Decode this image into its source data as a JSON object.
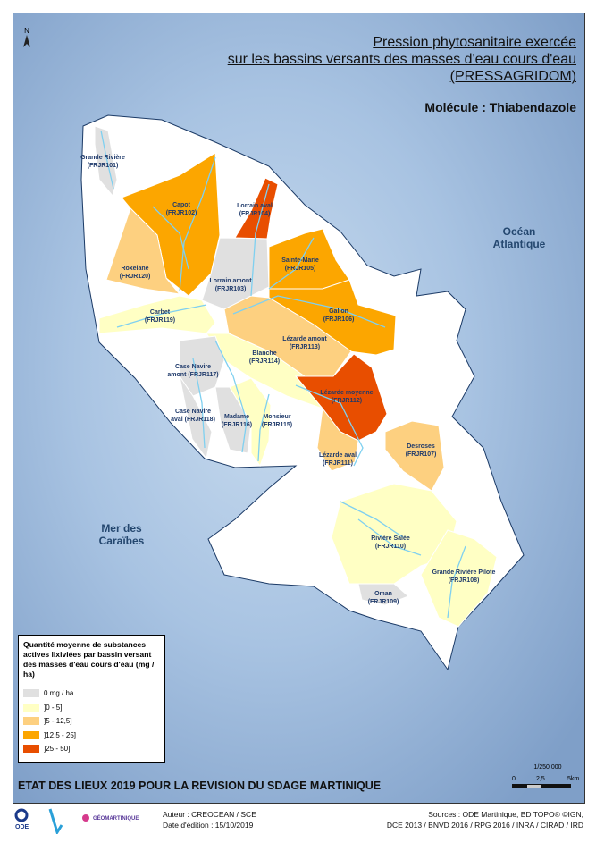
{
  "title": {
    "line1": "Pression phytosanitaire exercée",
    "line2": "sur les bassins versants des masses d'eau cours d'eau",
    "line3": "(PRESSAGRIDOM)"
  },
  "molecule": "Molécule : Thiabendazole",
  "north_label": "N",
  "seas": {
    "atlantic": [
      "Océan",
      "Atlantique"
    ],
    "caribbean": [
      "Mer des",
      "Caraïbes"
    ]
  },
  "basins": [
    {
      "name": "Grande Rivière",
      "code": "(FRJR101)",
      "class": "0 mg / ha"
    },
    {
      "name": "Capot",
      "code": "(FRJR102)",
      "class": "]12,5 - 25]"
    },
    {
      "name": "Lorrain amont",
      "code": "(FRJR103)",
      "class": "0 mg / ha"
    },
    {
      "name": "Lorrain aval",
      "code": "(FRJR104)",
      "class": "]25 - 50]"
    },
    {
      "name": "Sainte-Marie",
      "code": "(FRJR105)",
      "class": "]12,5 - 25]"
    },
    {
      "name": "Galion",
      "code": "(FRJR106)",
      "class": "]12,5 - 25]"
    },
    {
      "name": "Desroses",
      "code": "(FRJR107)",
      "class": "]5 - 12,5]"
    },
    {
      "name": "Grande Rivière Pilote",
      "code": "(FRJR108)",
      "class": "]0 - 5]"
    },
    {
      "name": "Oman",
      "code": "(FRJR109)",
      "class": "0 mg / ha"
    },
    {
      "name": "Rivière Salée",
      "code": "(FRJR110)",
      "class": "]0 - 5]"
    },
    {
      "name": "Lézarde aval",
      "code": "(FRJR111)",
      "class": "]5 - 12,5]"
    },
    {
      "name": "Lézarde moyenne",
      "code": "(FRJR112)",
      "class": "]25 - 50]"
    },
    {
      "name": "Lézarde amont",
      "code": "(FRJR113)",
      "class": "]5 - 12,5]"
    },
    {
      "name": "Blanche",
      "code": "(FRJR114)",
      "class": "]0 - 5]"
    },
    {
      "name": "Monsieur",
      "code": "(FRJR115)",
      "class": "]0 - 5]"
    },
    {
      "name": "Madame",
      "code": "(FRJR116)",
      "class": "0 mg / ha"
    },
    {
      "name": "Case Navire amont",
      "code": "(FRJR117)",
      "class": "0 mg / ha"
    },
    {
      "name": "Case Navire aval",
      "code": "(FRJR118)",
      "class": "0 mg / ha"
    },
    {
      "name": "Carbet",
      "code": "(FRJR119)",
      "class": "]0 - 5]"
    },
    {
      "name": "Roxelane",
      "code": "(FRJR120)",
      "class": "]5 - 12,5]"
    }
  ],
  "legend": {
    "title": "Quantité moyenne de substances actives lixiviées par bassin versant des masses d'eau cours d'eau (mg / ha)",
    "items": [
      {
        "label": "0 mg / ha",
        "color": "#e0e0e0"
      },
      {
        "label": "]0 - 5]",
        "color": "#ffffc4"
      },
      {
        "label": "]5 - 12,5]",
        "color": "#fdd080"
      },
      {
        "label": "]12,5 - 25]",
        "color": "#fca600"
      },
      {
        "label": "]25 - 50]",
        "color": "#e84e00"
      }
    ]
  },
  "colors": {
    "sea": "#9bb8da",
    "land": "#ffffff",
    "river": "#7fd0f0",
    "coast": "#1b3a66"
  },
  "bottom_title": "ETAT DES LIEUX 2019 POUR LA REVISION DU SDAGE MARTINIQUE",
  "scale": {
    "ratio": "1/250 000",
    "ticks": [
      "0",
      "2,5",
      "5km"
    ]
  },
  "footer": {
    "logos": [
      "ODE",
      "GÉOMARTINIQUE"
    ],
    "author": "Auteur : CREOCEAN / SCE",
    "date": "Date d'édition : 15/10/2019",
    "sources1": "Sources : ODE Martinique, BD TOPO® ©IGN,",
    "sources2": "DCE 2013 / BNVD 2016 / RPG 2016 / INRA / CIRAD / IRD"
  }
}
